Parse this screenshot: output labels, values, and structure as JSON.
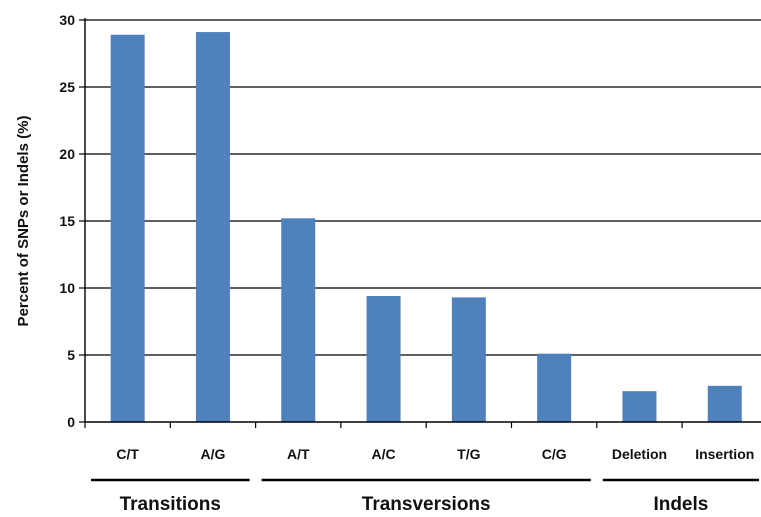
{
  "chart_data": {
    "type": "bar",
    "title": "",
    "xlabel": "",
    "ylabel": "Percent of SNPs or Indels (%)",
    "ylim": [
      0,
      30
    ],
    "yticks": [
      "0",
      "5",
      "10",
      "15",
      "20",
      "25",
      "30"
    ],
    "grid": true,
    "categories": [
      "C/T",
      "A/G",
      "A/T",
      "A/C",
      "T/G",
      "C/G",
      "Deletion",
      "Insertion"
    ],
    "values": [
      28.9,
      29.1,
      15.2,
      9.4,
      9.3,
      5.1,
      2.3,
      2.7
    ],
    "groups": [
      {
        "label": "Transitions",
        "categories": [
          "C/T",
          "A/G"
        ]
      },
      {
        "label": "Transversions",
        "categories": [
          "A/T",
          "A/C",
          "T/G",
          "C/G"
        ]
      },
      {
        "label": "Indels",
        "categories": [
          "Deletion",
          "Insertion"
        ]
      }
    ],
    "bar_color": "#4f81bd"
  }
}
